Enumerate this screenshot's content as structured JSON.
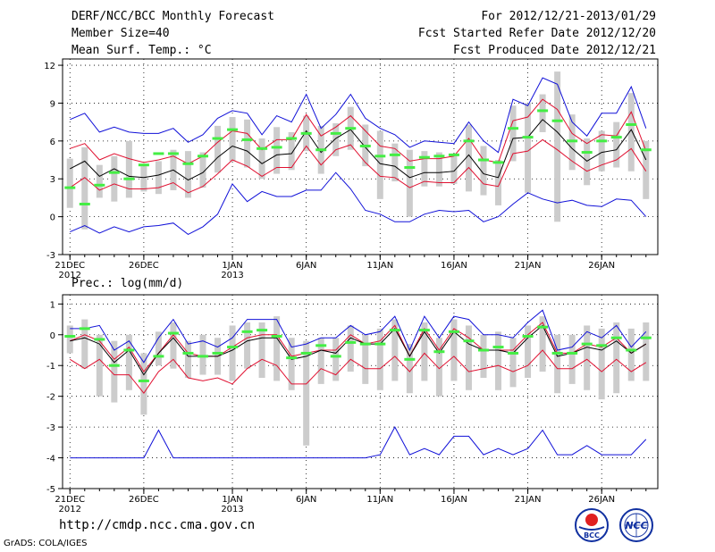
{
  "header": {
    "title": "DERF/NCC/BCC Monthly Forecast",
    "member_size": "Member Size=40",
    "variable": "Mean Surf. Temp.: °C",
    "forecast_period": "For 2012/12/21-2013/01/29",
    "started_refer": "Fcst Started Refer Date 2012/12/20",
    "produced": "Fcst Produced Date 2012/12/21"
  },
  "footer": {
    "url": "http://cmdp.ncc.cma.gov.cn",
    "credit": "GrADS: COLA/IGES",
    "logo_bcc": "BCC",
    "logo_ncc": "NCC"
  },
  "colors": {
    "bar": "#cccccc",
    "green": "#44ee44",
    "blue": "#1010d8",
    "red": "#e01030",
    "mean": "#000000"
  },
  "chart_data": [
    {
      "type": "line",
      "title": "Mean Surf. Temp.: °C",
      "ylim": [
        -3,
        12.5
      ],
      "yticks": [
        -3,
        0,
        3,
        6,
        9,
        12
      ],
      "xlim": [
        0.5,
        40.8
      ],
      "xticks": [
        {
          "x": 1,
          "label": "21DEC",
          "sub": "2012"
        },
        {
          "x": 6,
          "label": "26DEC",
          "sub": ""
        },
        {
          "x": 12,
          "label": "1JAN",
          "sub": "2013"
        },
        {
          "x": 17,
          "label": "6JAN",
          "sub": ""
        },
        {
          "x": 22,
          "label": "11JAN",
          "sub": ""
        },
        {
          "x": 27,
          "label": "16JAN",
          "sub": ""
        },
        {
          "x": 32,
          "label": "21JAN",
          "sub": ""
        },
        {
          "x": 37,
          "label": "26JAN",
          "sub": ""
        }
      ],
      "series": [
        {
          "name": "ensemble max",
          "color": "blue",
          "values": [
            7.7,
            8.2,
            6.7,
            7.1,
            6.7,
            6.6,
            6.6,
            7.0,
            5.9,
            6.5,
            7.8,
            8.4,
            8.2,
            6.5,
            8.0,
            7.5,
            9.7,
            7.0,
            8.1,
            9.7,
            7.8,
            7.0,
            6.5,
            5.5,
            6.0,
            5.9,
            5.8,
            7.5,
            6.0,
            5.1,
            9.3,
            8.8,
            11.0,
            10.5,
            7.5,
            6.4,
            8.2,
            8.2,
            10.3,
            7.0
          ]
        },
        {
          "name": "upper bound",
          "color": "red",
          "values": [
            5.4,
            5.8,
            4.5,
            5.0,
            4.6,
            4.3,
            4.5,
            4.8,
            4.2,
            4.8,
            5.9,
            6.8,
            6.6,
            5.3,
            6.1,
            6.1,
            8.1,
            6.4,
            7.1,
            8.0,
            6.8,
            5.6,
            5.4,
            4.4,
            4.6,
            4.6,
            4.8,
            6.2,
            4.5,
            4.3,
            7.6,
            7.9,
            9.3,
            8.5,
            6.6,
            5.8,
            6.5,
            6.4,
            8.3,
            5.2
          ]
        },
        {
          "name": "ensemble mean",
          "color": "mean",
          "values": [
            3.8,
            4.4,
            3.2,
            3.8,
            3.2,
            3.1,
            3.3,
            3.7,
            2.9,
            3.5,
            4.7,
            5.6,
            5.2,
            4.2,
            4.9,
            5.0,
            6.8,
            5.1,
            6.2,
            6.9,
            5.5,
            4.2,
            4.0,
            3.1,
            3.5,
            3.5,
            3.6,
            4.9,
            3.4,
            3.1,
            6.2,
            6.3,
            7.7,
            6.7,
            5.4,
            4.4,
            5.1,
            5.3,
            6.9,
            4.5
          ]
        },
        {
          "name": "lower bound",
          "color": "red",
          "values": [
            2.3,
            3.1,
            2.1,
            2.6,
            2.2,
            2.2,
            2.3,
            2.7,
            1.9,
            2.4,
            3.4,
            4.5,
            4.0,
            3.2,
            3.9,
            3.9,
            5.6,
            4.1,
            5.3,
            5.7,
            4.3,
            3.2,
            3.1,
            2.3,
            2.8,
            2.7,
            2.7,
            3.9,
            2.6,
            2.4,
            5.0,
            5.2,
            6.1,
            5.3,
            4.4,
            3.6,
            4.1,
            4.5,
            5.4,
            3.6
          ]
        },
        {
          "name": "ensemble min",
          "color": "blue",
          "values": [
            -1.2,
            -0.7,
            -1.3,
            -0.8,
            -1.2,
            -0.8,
            -0.7,
            -0.5,
            -1.4,
            -0.8,
            0.2,
            2.6,
            1.2,
            2.0,
            1.6,
            1.6,
            2.1,
            2.1,
            3.5,
            2.2,
            0.5,
            0.2,
            -0.4,
            -0.4,
            0.2,
            0.5,
            0.4,
            0.5,
            -0.4,
            0.0,
            1.0,
            1.9,
            1.4,
            1.1,
            1.3,
            0.9,
            0.8,
            1.4,
            1.3,
            0.0
          ]
        }
      ],
      "markers": {
        "name": "observed/verification",
        "color": "green",
        "values": [
          2.3,
          1.0,
          2.5,
          3.5,
          3.0,
          4.1,
          5.0,
          5.0,
          4.2,
          4.8,
          6.2,
          6.9,
          6.1,
          5.4,
          5.5,
          6.2,
          6.6,
          5.3,
          6.6,
          7.0,
          5.6,
          4.8,
          4.9,
          3.9,
          4.7,
          4.8,
          4.9,
          6.0,
          4.5,
          4.3,
          7.0,
          6.3,
          8.4,
          7.6,
          6.0,
          5.1,
          6.0,
          6.3,
          7.3,
          5.3
        ]
      },
      "boxes": {
        "name": "ensemble spread",
        "low": [
          0.7,
          -1.0,
          1.5,
          1.2,
          1.5,
          2.0,
          1.8,
          2.1,
          1.5,
          2.3,
          3.5,
          4.4,
          3.9,
          3.0,
          3.4,
          3.7,
          5.2,
          3.4,
          4.8,
          5.3,
          4.0,
          1.4,
          2.8,
          0.0,
          2.4,
          2.4,
          2.6,
          2.0,
          1.7,
          0.9,
          4.4,
          1.9,
          6.7,
          -0.4,
          3.7,
          2.5,
          3.6,
          3.9,
          3.6,
          1.4
        ],
        "high": [
          4.6,
          5.5,
          4.1,
          4.8,
          6.0,
          4.0,
          4.4,
          5.3,
          5.2,
          5.1,
          7.2,
          7.9,
          7.7,
          6.2,
          7.1,
          6.7,
          8.0,
          7.2,
          7.4,
          8.7,
          7.3,
          6.8,
          5.8,
          5.3,
          5.2,
          5.1,
          5.0,
          7.3,
          5.6,
          4.5,
          8.8,
          9.0,
          9.7,
          11.5,
          8.1,
          6.2,
          6.8,
          7.5,
          9.8,
          6.0
        ]
      }
    },
    {
      "type": "line",
      "title": "Prec.: log(mm/d)",
      "ylim": [
        -5,
        1.3
      ],
      "yticks": [
        -5,
        -4,
        -3,
        -2,
        -1,
        0,
        1
      ],
      "xlim": [
        0.5,
        40.8
      ],
      "xticks": [
        {
          "x": 1,
          "label": "21DEC",
          "sub": "2012"
        },
        {
          "x": 6,
          "label": "26DEC",
          "sub": ""
        },
        {
          "x": 12,
          "label": "1JAN",
          "sub": "2013"
        },
        {
          "x": 17,
          "label": "6JAN",
          "sub": ""
        },
        {
          "x": 22,
          "label": "11JAN",
          "sub": ""
        },
        {
          "x": 27,
          "label": "16JAN",
          "sub": ""
        },
        {
          "x": 32,
          "label": "21JAN",
          "sub": ""
        },
        {
          "x": 37,
          "label": "26JAN",
          "sub": ""
        }
      ],
      "series": [
        {
          "name": "ensemble max",
          "color": "blue",
          "values": [
            0.2,
            0.2,
            0.3,
            -0.5,
            -0.2,
            -0.9,
            -0.1,
            0.5,
            -0.3,
            -0.2,
            -0.4,
            -0.1,
            0.5,
            0.5,
            0.5,
            -0.4,
            -0.3,
            -0.1,
            -0.1,
            0.3,
            0.0,
            0.1,
            0.6,
            -0.5,
            0.6,
            -0.1,
            0.6,
            0.5,
            0.0,
            0.0,
            -0.1,
            0.4,
            0.8,
            -0.5,
            -0.4,
            0.1,
            -0.1,
            0.3,
            -0.4,
            0.1
          ]
        },
        {
          "name": "upper bound",
          "color": "red",
          "values": [
            -0.2,
            0.0,
            -0.2,
            -0.8,
            -0.4,
            -1.2,
            -0.6,
            0.0,
            -0.6,
            -0.7,
            -0.7,
            -0.4,
            -0.1,
            0.0,
            0.0,
            -0.7,
            -0.6,
            -0.5,
            -0.5,
            0.0,
            -0.3,
            -0.2,
            0.3,
            -0.7,
            0.2,
            -0.5,
            0.2,
            -0.1,
            -0.5,
            -0.5,
            -0.5,
            0.0,
            0.4,
            -0.6,
            -0.6,
            -0.3,
            -0.4,
            -0.1,
            -0.6,
            -0.3
          ]
        },
        {
          "name": "ensemble mean",
          "color": "mean",
          "values": [
            -0.2,
            -0.1,
            -0.3,
            -0.9,
            -0.5,
            -1.3,
            -0.6,
            -0.1,
            -0.7,
            -0.7,
            -0.7,
            -0.5,
            -0.2,
            -0.1,
            -0.1,
            -0.8,
            -0.7,
            -0.5,
            -0.6,
            -0.1,
            -0.3,
            -0.3,
            0.2,
            -0.7,
            0.1,
            -0.6,
            0.1,
            -0.3,
            -0.5,
            -0.5,
            -0.6,
            -0.1,
            0.3,
            -0.7,
            -0.6,
            -0.4,
            -0.5,
            -0.2,
            -0.6,
            -0.3
          ]
        },
        {
          "name": "lower bound",
          "color": "red",
          "values": [
            -0.8,
            -1.1,
            -0.8,
            -1.3,
            -1.3,
            -1.9,
            -1.2,
            -0.8,
            -1.4,
            -1.5,
            -1.4,
            -1.6,
            -1.1,
            -0.8,
            -1.0,
            -1.6,
            -1.6,
            -1.1,
            -1.3,
            -0.8,
            -1.1,
            -1.1,
            -0.7,
            -1.2,
            -0.6,
            -1.1,
            -0.7,
            -1.2,
            -1.1,
            -1.0,
            -1.2,
            -1.0,
            -0.5,
            -1.1,
            -1.1,
            -0.8,
            -1.2,
            -0.8,
            -1.2,
            -0.9
          ]
        },
        {
          "name": "ensemble min",
          "color": "blue",
          "values": [
            -4,
            -4,
            -4,
            -4,
            -4,
            -4,
            -3.1,
            -4,
            -4,
            -4,
            -4,
            -4,
            -4,
            -4,
            -4,
            -4,
            -4,
            -4,
            -4,
            -4,
            -4,
            -3.9,
            -3.0,
            -3.9,
            -3.7,
            -3.9,
            -3.3,
            -3.3,
            -3.9,
            -3.7,
            -3.9,
            -3.7,
            -3.1,
            -3.9,
            -3.9,
            -3.6,
            -3.9,
            -3.9,
            -3.9,
            -3.4
          ]
        }
      ],
      "markers": {
        "name": "observed/verification",
        "color": "green",
        "values": [
          -0.05,
          0.2,
          -0.15,
          -1.0,
          -0.5,
          -1.5,
          -0.7,
          0.05,
          -0.6,
          -0.7,
          -0.6,
          -0.4,
          0.1,
          0.15,
          -0.05,
          -0.75,
          -0.6,
          -0.35,
          -0.7,
          -0.25,
          -0.3,
          -0.3,
          0.15,
          -0.8,
          0.15,
          -0.55,
          0.1,
          -0.2,
          -0.5,
          -0.4,
          -0.6,
          -0.05,
          0.25,
          -0.6,
          -0.6,
          -0.3,
          -0.35,
          -0.1,
          -0.5,
          -0.1
        ]
      },
      "boxes": {
        "name": "ensemble spread",
        "low": [
          -0.6,
          -1.1,
          -2.0,
          -2.2,
          -1.8,
          -2.6,
          -1.0,
          -1.1,
          -1.4,
          -1.3,
          -1.3,
          -1.5,
          -1.1,
          -1.4,
          -1.5,
          -1.8,
          -3.6,
          -1.6,
          -1.5,
          -1.2,
          -1.6,
          -1.8,
          -1.5,
          -1.9,
          -1.5,
          -2.0,
          -1.5,
          -1.8,
          -1.4,
          -1.8,
          -1.7,
          -1.4,
          -1.2,
          -1.9,
          -1.6,
          -1.8,
          -2.1,
          -1.9,
          -1.5,
          -1.5
        ]
      },
      "boxes_high": [
        0.3,
        0.5,
        0.0,
        -0.2,
        0.0,
        -0.6,
        0.1,
        0.4,
        -0.2,
        0.0,
        -0.1,
        0.3,
        0.4,
        0.4,
        0.6,
        -0.1,
        -0.2,
        -0.1,
        -0.1,
        0.3,
        0.0,
        0.2,
        0.5,
        -0.3,
        0.4,
        -0.1,
        0.5,
        0.3,
        0.0,
        0.1,
        -0.1,
        0.3,
        0.6,
        0.0,
        0.0,
        0.3,
        0.2,
        0.4,
        0.2,
        0.4
      ]
    }
  ]
}
